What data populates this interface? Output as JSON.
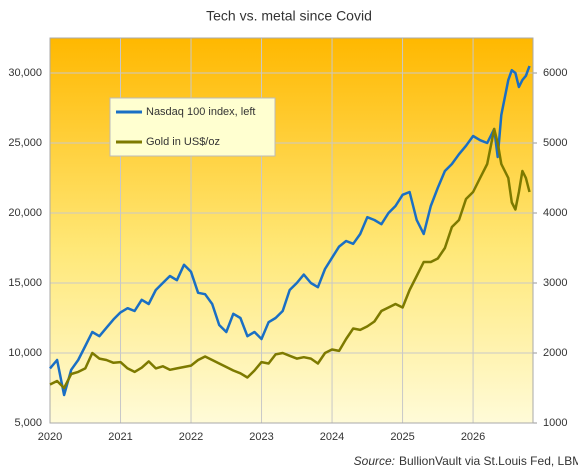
{
  "chart_data": {
    "type": "line",
    "title": "Tech vs. metal since Covid",
    "source_label": "Source:",
    "source": "BullionVault via St.Louis Fed, LBMA, weekly close",
    "legend": "upper left",
    "grid": true,
    "x": [
      2020.0,
      2020.1,
      2020.2,
      2020.3,
      2020.4,
      2020.5,
      2020.6,
      2020.7,
      2020.8,
      2020.9,
      2021.0,
      2021.1,
      2021.2,
      2021.3,
      2021.4,
      2021.5,
      2021.6,
      2021.7,
      2021.8,
      2021.9,
      2022.0,
      2022.1,
      2022.2,
      2022.3,
      2022.4,
      2022.5,
      2022.6,
      2022.7,
      2022.8,
      2022.9,
      2023.0,
      2023.1,
      2023.2,
      2023.3,
      2023.4,
      2023.5,
      2023.6,
      2023.7,
      2023.8,
      2023.9,
      2024.0,
      2024.1,
      2024.2,
      2024.3,
      2024.4,
      2024.5,
      2024.6,
      2024.7,
      2024.8,
      2024.9,
      2025.0,
      2025.1,
      2025.2,
      2025.3,
      2025.4,
      2025.5,
      2025.6,
      2025.7,
      2025.8,
      2025.9,
      2026.0,
      2026.1,
      2026.2,
      2026.3,
      2026.35,
      2026.4,
      2026.5,
      2026.55,
      2026.6,
      2026.65,
      2026.7,
      2026.75,
      2026.8
    ],
    "series": [
      {
        "name": "Nasdaq 100 index, left",
        "color": "#1a6fc4",
        "axis": "y",
        "values": [
          8900,
          9500,
          7000,
          8800,
          9500,
          10500,
          11500,
          11200,
          11800,
          12400,
          12900,
          13200,
          13000,
          13800,
          13500,
          14500,
          15000,
          15500,
          15200,
          16300,
          15800,
          14300,
          14200,
          13500,
          12000,
          11500,
          12800,
          12500,
          11200,
          11500,
          11000,
          12200,
          12500,
          13000,
          14500,
          15000,
          15600,
          15000,
          14700,
          16000,
          16800,
          17600,
          18000,
          17800,
          18500,
          19700,
          19500,
          19200,
          20000,
          20500,
          21300,
          21500,
          19500,
          18500,
          20500,
          21800,
          23000,
          23500,
          24200,
          24800,
          25500,
          25200,
          25000,
          26000,
          24000,
          27000,
          29500,
          30200,
          30000,
          29000,
          29500,
          29800,
          30500
        ]
      },
      {
        "name": "Gold in US$/oz",
        "color": "#7d7a00",
        "axis": "y2",
        "values": [
          1550,
          1600,
          1500,
          1700,
          1730,
          1780,
          2000,
          1920,
          1900,
          1860,
          1870,
          1780,
          1730,
          1790,
          1880,
          1780,
          1810,
          1760,
          1780,
          1800,
          1820,
          1900,
          1950,
          1900,
          1850,
          1800,
          1750,
          1710,
          1650,
          1750,
          1870,
          1850,
          1980,
          2000,
          1960,
          1920,
          1940,
          1920,
          1850,
          2000,
          2050,
          2030,
          2200,
          2350,
          2330,
          2380,
          2450,
          2600,
          2650,
          2700,
          2650,
          2900,
          3100,
          3300,
          3300,
          3350,
          3500,
          3800,
          3900,
          4200,
          4300,
          4500,
          4700,
          5200,
          5000,
          4700,
          4500,
          4150,
          4050,
          4300,
          4600,
          4500,
          4300
        ]
      }
    ],
    "xlim": [
      2020,
      2026.85
    ],
    "xticks": [
      2020,
      2021,
      2022,
      2023,
      2024,
      2025,
      2026
    ],
    "ylim": [
      5000,
      32500
    ],
    "yticks": [
      {
        "value": 5000,
        "label": "5,000"
      },
      {
        "value": 10000,
        "label": "10,000"
      },
      {
        "value": 15000,
        "label": "15,000"
      },
      {
        "value": 20000,
        "label": "20,000"
      },
      {
        "value": 25000,
        "label": "25,000"
      },
      {
        "value": 30000,
        "label": "30,000"
      }
    ],
    "y2lim": [
      1000,
      6500
    ],
    "y2ticks": [
      1000,
      2000,
      3000,
      4000,
      5000,
      6000
    ]
  }
}
